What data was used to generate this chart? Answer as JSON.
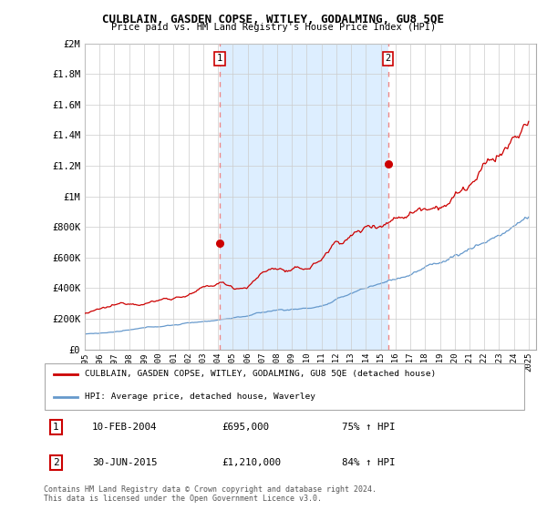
{
  "title": "CULBLAIN, GASDEN COPSE, WITLEY, GODALMING, GU8 5QE",
  "subtitle": "Price paid vs. HM Land Registry's House Price Index (HPI)",
  "legend_line1": "CULBLAIN, GASDEN COPSE, WITLEY, GODALMING, GU8 5QE (detached house)",
  "legend_line2": "HPI: Average price, detached house, Waverley",
  "annotation1_label": "1",
  "annotation1_date": "10-FEB-2004",
  "annotation1_price": "£695,000",
  "annotation1_hpi": "75% ↑ HPI",
  "annotation2_label": "2",
  "annotation2_date": "30-JUN-2015",
  "annotation2_price": "£1,210,000",
  "annotation2_hpi": "84% ↑ HPI",
  "footer1": "Contains HM Land Registry data © Crown copyright and database right 2024.",
  "footer2": "This data is licensed under the Open Government Licence v3.0.",
  "red_color": "#cc0000",
  "blue_color": "#6699cc",
  "dashed_color": "#ee8888",
  "shade_color": "#ddeeff",
  "ylim_min": 0,
  "ylim_max": 2000000,
  "sale1_year": 2004.11,
  "sale1_value": 695000,
  "sale2_year": 2015.5,
  "sale2_value": 1210000
}
